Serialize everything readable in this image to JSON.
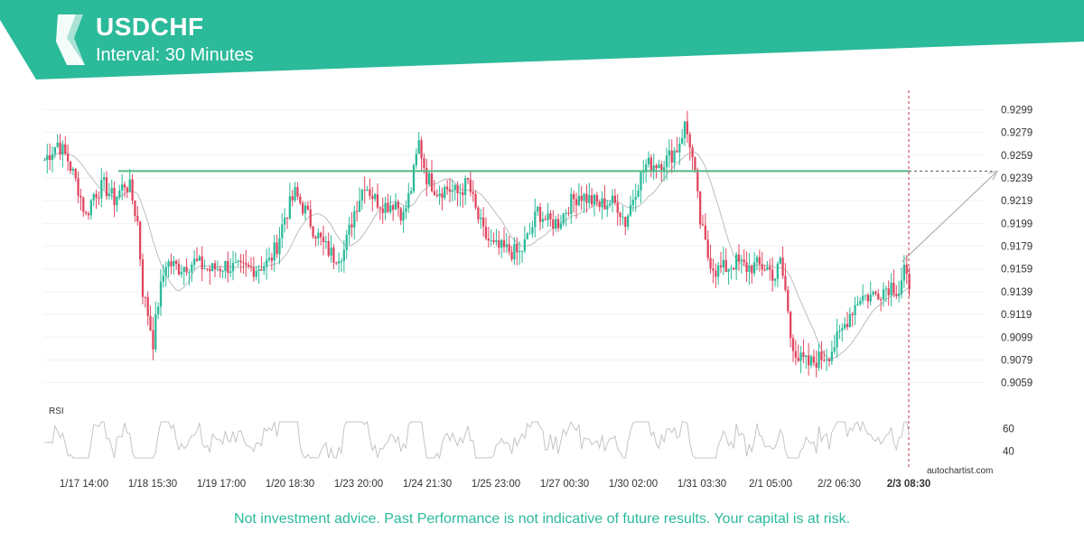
{
  "header": {
    "symbol": "USDCHF",
    "interval": "Interval: 30 Minutes"
  },
  "colors": {
    "brand": "#2bba9a",
    "bear": "#e0455e",
    "bull": "#2bba9a",
    "level_line": "#54b884",
    "ma_line": "#bdbdbd",
    "rsi_line": "#c4c4c4"
  },
  "chart_data": {
    "type": "candlestick",
    "title": "USDCHF",
    "subtitle": "Interval: 30 Minutes",
    "y_ticks": [
      "0.9299",
      "0.9279",
      "0.9259",
      "0.9239",
      "0.9219",
      "0.9199",
      "0.9179",
      "0.9159",
      "0.9139",
      "0.9119",
      "0.9099",
      "0.9079",
      "0.9059"
    ],
    "ylim": [
      0.9046,
      0.9316
    ],
    "x_ticks": [
      "1/17 14:00",
      "1/18 15:30",
      "1/19 17:00",
      "1/20 18:30",
      "1/23 20:00",
      "1/24 21:30",
      "1/25 23:00",
      "1/27 00:30",
      "1/30 02:00",
      "1/31 03:30",
      "2/1 05:00",
      "2/2 06:30"
    ],
    "current_time_label": "2/3 08:30",
    "resistance_level": 0.9245,
    "price_path": [
      [
        0,
        0.9255
      ],
      [
        5,
        0.927
      ],
      [
        9,
        0.9255
      ],
      [
        13,
        0.923
      ],
      [
        16,
        0.9205
      ],
      [
        19,
        0.9225
      ],
      [
        23,
        0.9232
      ],
      [
        27,
        0.922
      ],
      [
        31,
        0.9234
      ],
      [
        33,
        0.923
      ],
      [
        36,
        0.92
      ],
      [
        38,
        0.914
      ],
      [
        40,
        0.912
      ],
      [
        42,
        0.9095
      ],
      [
        44,
        0.913
      ],
      [
        47,
        0.9165
      ],
      [
        52,
        0.916
      ],
      [
        58,
        0.9165
      ],
      [
        64,
        0.9158
      ],
      [
        70,
        0.9162
      ],
      [
        76,
        0.9158
      ],
      [
        82,
        0.916
      ],
      [
        87,
        0.9165
      ],
      [
        90,
        0.918
      ],
      [
        93,
        0.9205
      ],
      [
        97,
        0.9225
      ],
      [
        101,
        0.921
      ],
      [
        104,
        0.9195
      ],
      [
        108,
        0.918
      ],
      [
        112,
        0.917
      ],
      [
        116,
        0.9175
      ],
      [
        120,
        0.921
      ],
      [
        124,
        0.9235
      ],
      [
        128,
        0.922
      ],
      [
        132,
        0.9215
      ],
      [
        136,
        0.9218
      ],
      [
        139,
        0.9205
      ],
      [
        142,
        0.923
      ],
      [
        145,
        0.927
      ],
      [
        148,
        0.924
      ],
      [
        152,
        0.9228
      ],
      [
        156,
        0.923
      ],
      [
        160,
        0.9225
      ],
      [
        164,
        0.9235
      ],
      [
        167,
        0.921
      ],
      [
        170,
        0.919
      ],
      [
        174,
        0.9178
      ],
      [
        180,
        0.9175
      ],
      [
        184,
        0.9172
      ],
      [
        188,
        0.919
      ],
      [
        191,
        0.921
      ],
      [
        195,
        0.92
      ],
      [
        199,
        0.92
      ],
      [
        203,
        0.9215
      ],
      [
        207,
        0.9225
      ],
      [
        211,
        0.922
      ],
      [
        215,
        0.9215
      ],
      [
        219,
        0.9218
      ],
      [
        222,
        0.9215
      ],
      [
        225,
        0.92
      ],
      [
        229,
        0.923
      ],
      [
        233,
        0.925
      ],
      [
        237,
        0.9252
      ],
      [
        241,
        0.9255
      ],
      [
        245,
        0.9265
      ],
      [
        248,
        0.9285
      ],
      [
        250,
        0.927
      ],
      [
        252,
        0.924
      ],
      [
        254,
        0.92
      ],
      [
        257,
        0.917
      ],
      [
        260,
        0.9158
      ],
      [
        264,
        0.916
      ],
      [
        268,
        0.9165
      ],
      [
        272,
        0.916
      ],
      [
        276,
        0.9162
      ],
      [
        280,
        0.916
      ],
      [
        283,
        0.9152
      ],
      [
        285,
        0.9165
      ],
      [
        287,
        0.914
      ],
      [
        289,
        0.91
      ],
      [
        292,
        0.908
      ],
      [
        296,
        0.9075
      ],
      [
        300,
        0.908
      ],
      [
        304,
        0.9085
      ],
      [
        308,
        0.91
      ],
      [
        312,
        0.912
      ],
      [
        316,
        0.9135
      ],
      [
        320,
        0.9135
      ],
      [
        324,
        0.914
      ],
      [
        328,
        0.9145
      ],
      [
        331,
        0.914
      ],
      [
        333,
        0.916
      ],
      [
        335,
        0.9135
      ]
    ],
    "rsi": {
      "label": "RSI",
      "y_ticks": [
        "60",
        "40"
      ],
      "ylim": [
        30,
        70
      ]
    },
    "source_label": "autochartist.com"
  },
  "disclaimer": "Not investment advice. Past Performance is not indicative of future results. Your capital is at risk."
}
